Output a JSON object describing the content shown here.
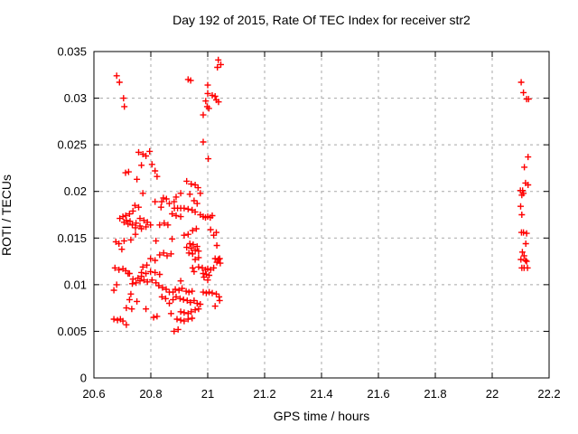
{
  "chart_data": {
    "type": "scatter",
    "title": "Day 192 of 2015, Rate Of TEC Index for receiver str2",
    "xlabel": "GPS time / hours",
    "ylabel": "ROTI / TECUs",
    "xlim": [
      20.6,
      22.2
    ],
    "ylim": [
      0,
      0.035
    ],
    "x_ticks": [
      20.6,
      20.8,
      21.0,
      21.2,
      21.4,
      21.6,
      21.8,
      22.0,
      22.2
    ],
    "x_tick_labels": [
      "20.6",
      "20.8",
      "21",
      "21.2",
      "21.4",
      "21.6",
      "21.8",
      "22",
      "22.2"
    ],
    "y_ticks": [
      0,
      0.005,
      0.01,
      0.015,
      0.02,
      0.025,
      0.03,
      0.035
    ],
    "y_tick_labels": [
      "0",
      "0.005",
      "0.01",
      "0.015",
      "0.02",
      "0.025",
      "0.03",
      "0.035"
    ],
    "grid": true,
    "legend_position": "none",
    "marker_shape": "plus",
    "marker_color": "#ff0000",
    "grid_color": "#a8a8a8",
    "border_color": "#000000",
    "series": [
      {
        "name": "ROTI",
        "points": [
          [
            20.68,
            0.0324
          ],
          [
            20.69,
            0.0317
          ],
          [
            20.704,
            0.03
          ],
          [
            20.707,
            0.0291
          ],
          [
            20.931,
            0.032
          ],
          [
            20.94,
            0.0319
          ],
          [
            21.037,
            0.0341
          ],
          [
            21.046,
            0.0336
          ],
          [
            21.034,
            0.0333
          ],
          [
            21.0,
            0.0314
          ],
          [
            21.0,
            0.0305
          ],
          [
            21.016,
            0.0303
          ],
          [
            21.026,
            0.0302
          ],
          [
            21.03,
            0.0298
          ],
          [
            20.993,
            0.0297
          ],
          [
            21.038,
            0.0296
          ],
          [
            20.998,
            0.0291
          ],
          [
            21.004,
            0.0289
          ],
          [
            20.984,
            0.0282
          ],
          [
            20.984,
            0.0253
          ],
          [
            21.002,
            0.0235
          ],
          [
            20.757,
            0.0242
          ],
          [
            20.772,
            0.024
          ],
          [
            20.783,
            0.0238
          ],
          [
            20.796,
            0.0243
          ],
          [
            20.711,
            0.022
          ],
          [
            20.722,
            0.0221
          ],
          [
            20.767,
            0.0228
          ],
          [
            20.804,
            0.0229
          ],
          [
            20.751,
            0.0213
          ],
          [
            20.815,
            0.0222
          ],
          [
            20.822,
            0.0216
          ],
          [
            20.772,
            0.0198
          ],
          [
            20.815,
            0.0189
          ],
          [
            20.838,
            0.0189
          ],
          [
            20.844,
            0.0193
          ],
          [
            20.855,
            0.0192
          ],
          [
            20.865,
            0.0187
          ],
          [
            20.926,
            0.0211
          ],
          [
            20.942,
            0.0208
          ],
          [
            20.956,
            0.0207
          ],
          [
            20.966,
            0.0204
          ],
          [
            20.905,
            0.0198
          ],
          [
            20.889,
            0.0194
          ],
          [
            20.974,
            0.0198
          ],
          [
            20.937,
            0.0197
          ],
          [
            20.952,
            0.019
          ],
          [
            20.882,
            0.0189
          ],
          [
            20.963,
            0.0187
          ],
          [
            20.744,
            0.0185
          ],
          [
            20.757,
            0.0183
          ],
          [
            20.737,
            0.0179
          ],
          [
            20.725,
            0.0176
          ],
          [
            20.712,
            0.0174
          ],
          [
            20.702,
            0.0173
          ],
          [
            20.691,
            0.0171
          ],
          [
            20.714,
            0.0169
          ],
          [
            20.727,
            0.0168
          ],
          [
            20.706,
            0.0167
          ],
          [
            20.72,
            0.0165
          ],
          [
            20.735,
            0.0164
          ],
          [
            20.748,
            0.0166
          ],
          [
            20.762,
            0.0171
          ],
          [
            20.776,
            0.0169
          ],
          [
            20.788,
            0.0167
          ],
          [
            20.762,
            0.0163
          ],
          [
            20.746,
            0.0161
          ],
          [
            20.836,
            0.0183
          ],
          [
            20.767,
            0.016
          ],
          [
            20.783,
            0.0162
          ],
          [
            20.799,
            0.0164
          ],
          [
            20.831,
            0.0164
          ],
          [
            20.847,
            0.0166
          ],
          [
            20.86,
            0.0164
          ],
          [
            20.883,
            0.0182
          ],
          [
            20.894,
            0.0182
          ],
          [
            20.905,
            0.0182
          ],
          [
            20.917,
            0.0182
          ],
          [
            20.931,
            0.0181
          ],
          [
            20.945,
            0.018
          ],
          [
            20.956,
            0.0178
          ],
          [
            20.875,
            0.0176
          ],
          [
            20.889,
            0.0174
          ],
          [
            20.905,
            0.0173
          ],
          [
            20.974,
            0.0175
          ],
          [
            20.984,
            0.0173
          ],
          [
            20.992,
            0.0172
          ],
          [
            21.0,
            0.0173
          ],
          [
            21.009,
            0.0172
          ],
          [
            21.016,
            0.0174
          ],
          [
            20.746,
            0.0154
          ],
          [
            20.73,
            0.0148
          ],
          [
            20.706,
            0.0147
          ],
          [
            20.677,
            0.0146
          ],
          [
            20.688,
            0.0144
          ],
          [
            20.698,
            0.0138
          ],
          [
            20.818,
            0.0147
          ],
          [
            20.947,
            0.0158
          ],
          [
            20.96,
            0.016
          ],
          [
            20.931,
            0.0154
          ],
          [
            20.917,
            0.0153
          ],
          [
            21.01,
            0.0159
          ],
          [
            21.03,
            0.0156
          ],
          [
            21.021,
            0.0153
          ],
          [
            20.875,
            0.0149
          ],
          [
            20.937,
            0.0144
          ],
          [
            20.949,
            0.0143
          ],
          [
            20.963,
            0.0141
          ],
          [
            21.032,
            0.0142
          ],
          [
            20.831,
            0.0132
          ],
          [
            20.845,
            0.0134
          ],
          [
            20.857,
            0.0131
          ],
          [
            20.871,
            0.0133
          ],
          [
            20.799,
            0.0128
          ],
          [
            20.815,
            0.0126
          ],
          [
            20.786,
            0.0121
          ],
          [
            20.772,
            0.0119
          ],
          [
            20.926,
            0.014
          ],
          [
            20.942,
            0.0139
          ],
          [
            20.956,
            0.0137
          ],
          [
            20.968,
            0.0136
          ],
          [
            20.934,
            0.0134
          ],
          [
            20.947,
            0.0133
          ],
          [
            20.968,
            0.0129
          ],
          [
            20.956,
            0.0127
          ],
          [
            21.026,
            0.0128
          ],
          [
            21.037,
            0.0127
          ],
          [
            21.042,
            0.0128
          ],
          [
            21.032,
            0.0124
          ],
          [
            21.044,
            0.0123
          ],
          [
            20.674,
            0.0118
          ],
          [
            20.688,
            0.0116
          ],
          [
            20.702,
            0.0117
          ],
          [
            20.712,
            0.0115
          ],
          [
            20.725,
            0.0112
          ],
          [
            20.737,
            0.0106
          ],
          [
            20.755,
            0.0107
          ],
          [
            20.767,
            0.0109
          ],
          [
            20.947,
            0.0118
          ],
          [
            20.968,
            0.0119
          ],
          [
            20.981,
            0.0118
          ],
          [
            20.992,
            0.0116
          ],
          [
            21.0,
            0.0117
          ],
          [
            21.01,
            0.0116
          ],
          [
            21.021,
            0.0118
          ],
          [
            20.984,
            0.0112
          ],
          [
            20.995,
            0.0111
          ],
          [
            21.005,
            0.011
          ],
          [
            20.987,
            0.0108
          ],
          [
            20.72,
            0.0112
          ],
          [
            20.767,
            0.0113
          ],
          [
            20.783,
            0.0112
          ],
          [
            20.799,
            0.0114
          ],
          [
            20.815,
            0.0113
          ],
          [
            20.831,
            0.0111
          ],
          [
            20.952,
            0.0114
          ],
          [
            21.0,
            0.0105
          ],
          [
            20.905,
            0.0104
          ],
          [
            20.68,
            0.01
          ],
          [
            20.67,
            0.0094
          ],
          [
            20.735,
            0.0101
          ],
          [
            20.748,
            0.0102
          ],
          [
            20.762,
            0.0104
          ],
          [
            20.776,
            0.0105
          ],
          [
            20.788,
            0.0103
          ],
          [
            20.804,
            0.0105
          ],
          [
            20.818,
            0.0102
          ],
          [
            20.828,
            0.0099
          ],
          [
            20.841,
            0.0097
          ],
          [
            20.854,
            0.0095
          ],
          [
            20.865,
            0.0092
          ],
          [
            20.73,
            0.009
          ],
          [
            20.878,
            0.0092
          ],
          [
            20.886,
            0.0095
          ],
          [
            20.899,
            0.0094
          ],
          [
            20.91,
            0.0096
          ],
          [
            20.924,
            0.0093
          ],
          [
            20.934,
            0.0092
          ],
          [
            20.945,
            0.0093
          ],
          [
            20.984,
            0.0092
          ],
          [
            20.995,
            0.0091
          ],
          [
            21.005,
            0.0092
          ],
          [
            21.016,
            0.0091
          ],
          [
            21.03,
            0.009
          ],
          [
            20.725,
            0.0084
          ],
          [
            20.751,
            0.0082
          ],
          [
            20.839,
            0.0087
          ],
          [
            20.852,
            0.0085
          ],
          [
            20.865,
            0.008
          ],
          [
            20.889,
            0.0087
          ],
          [
            20.878,
            0.0084
          ],
          [
            20.903,
            0.0085
          ],
          [
            20.915,
            0.0084
          ],
          [
            20.928,
            0.0083
          ],
          [
            20.939,
            0.0081
          ],
          [
            20.952,
            0.0083
          ],
          [
            20.963,
            0.008
          ],
          [
            20.974,
            0.0079
          ],
          [
            21.04,
            0.0087
          ],
          [
            21.042,
            0.0083
          ],
          [
            21.026,
            0.0077
          ],
          [
            20.714,
            0.0075
          ],
          [
            20.733,
            0.0074
          ],
          [
            20.783,
            0.0074
          ],
          [
            20.81,
            0.0065
          ],
          [
            20.822,
            0.0066
          ],
          [
            20.67,
            0.0063
          ],
          [
            20.683,
            0.0062
          ],
          [
            20.693,
            0.0063
          ],
          [
            20.702,
            0.0061
          ],
          [
            20.714,
            0.0057
          ],
          [
            20.871,
            0.0069
          ],
          [
            20.905,
            0.0071
          ],
          [
            20.917,
            0.007
          ],
          [
            20.931,
            0.0069
          ],
          [
            20.942,
            0.0071
          ],
          [
            20.956,
            0.0073
          ],
          [
            20.968,
            0.0074
          ],
          [
            20.892,
            0.0063
          ],
          [
            20.905,
            0.0062
          ],
          [
            20.917,
            0.0061
          ],
          [
            20.931,
            0.0063
          ],
          [
            20.945,
            0.0064
          ],
          [
            20.882,
            0.005
          ],
          [
            20.896,
            0.0052
          ],
          [
            22.102,
            0.0317
          ],
          [
            22.11,
            0.0306
          ],
          [
            22.121,
            0.0299
          ],
          [
            22.128,
            0.0299
          ],
          [
            22.126,
            0.0237
          ],
          [
            22.113,
            0.0226
          ],
          [
            22.117,
            0.0209
          ],
          [
            22.126,
            0.0207
          ],
          [
            22.099,
            0.0201
          ],
          [
            22.107,
            0.0201
          ],
          [
            22.11,
            0.0198
          ],
          [
            22.104,
            0.0196
          ],
          [
            22.1,
            0.0184
          ],
          [
            22.104,
            0.0175
          ],
          [
            22.103,
            0.0156
          ],
          [
            22.11,
            0.0156
          ],
          [
            22.121,
            0.0155
          ],
          [
            22.118,
            0.0144
          ],
          [
            22.106,
            0.0135
          ],
          [
            22.112,
            0.0131
          ],
          [
            22.101,
            0.0127
          ],
          [
            22.117,
            0.0126
          ],
          [
            22.121,
            0.0125
          ],
          [
            22.104,
            0.0118
          ],
          [
            22.112,
            0.0118
          ],
          [
            22.124,
            0.0118
          ]
        ]
      }
    ]
  }
}
